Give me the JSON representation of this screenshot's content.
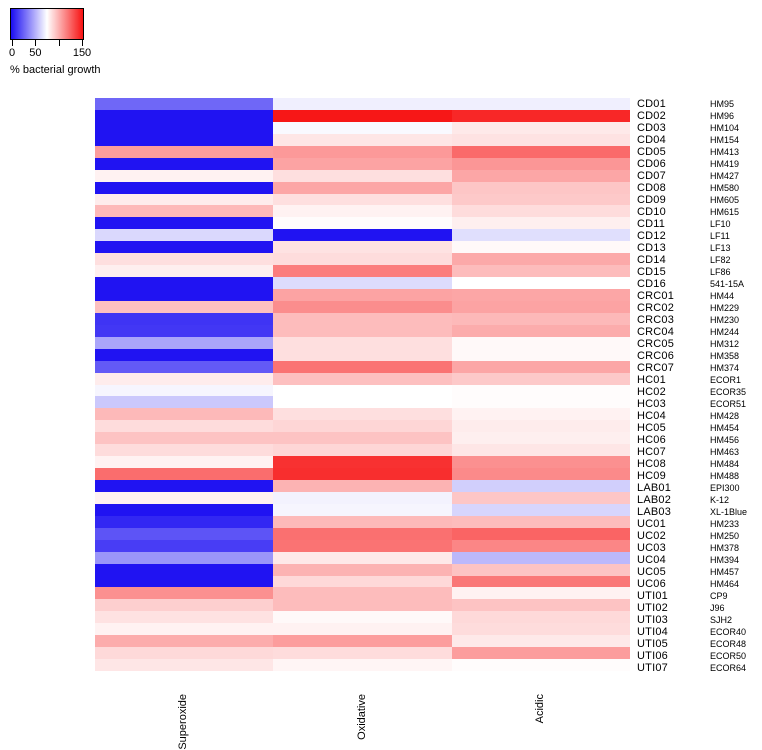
{
  "legend": {
    "title": "% bacterial growth",
    "ticks": [
      {
        "value": 0,
        "label": "0"
      },
      {
        "value": 50,
        "label": "50"
      },
      {
        "value": 100,
        "label": ""
      },
      {
        "value": 150,
        "label": "150"
      }
    ]
  },
  "chart_data": {
    "type": "heatmap",
    "unit": "% bacterial growth",
    "columns": [
      "Superoxide",
      "Oxidative",
      "Acidic"
    ],
    "color_scale": {
      "min": 0,
      "midpoint": 75,
      "max": 150,
      "min_color": "#1A0DF2",
      "mid_color": "#FFFFFF",
      "max_color": "#F71111"
    },
    "rows": [
      {
        "id": "CD01",
        "strain": "HM95",
        "values": [
          28,
          70,
          70
        ]
      },
      {
        "id": "CD02",
        "strain": "HM96",
        "values": [
          2,
          148,
          143
        ]
      },
      {
        "id": "CD03",
        "strain": "HM104",
        "values": [
          2,
          73,
          82
        ]
      },
      {
        "id": "CD04",
        "strain": "HM154",
        "values": [
          2,
          83,
          84
        ]
      },
      {
        "id": "CD05",
        "strain": "HM413",
        "values": [
          106,
          107,
          122
        ]
      },
      {
        "id": "CD06",
        "strain": "HM419",
        "values": [
          2,
          104,
          108
        ]
      },
      {
        "id": "CD07",
        "strain": "HM427",
        "values": [
          79,
          85,
          103
        ]
      },
      {
        "id": "CD08",
        "strain": "HM580",
        "values": [
          2,
          103,
          93
        ]
      },
      {
        "id": "CD09",
        "strain": "HM605",
        "values": [
          81,
          85,
          92
        ]
      },
      {
        "id": "CD10",
        "strain": "HM615",
        "values": [
          97,
          79,
          86
        ]
      },
      {
        "id": "CD11",
        "strain": "LF10",
        "values": [
          2,
          76,
          80
        ]
      },
      {
        "id": "CD12",
        "strain": "LF11",
        "values": [
          63,
          2,
          65
        ]
      },
      {
        "id": "CD13",
        "strain": "LF13",
        "values": [
          2,
          84,
          77
        ]
      },
      {
        "id": "CD14",
        "strain": "LF82",
        "values": [
          85,
          86,
          102
        ]
      },
      {
        "id": "CD15",
        "strain": "LF86",
        "values": [
          80,
          116,
          96
        ]
      },
      {
        "id": "CD16",
        "strain": "541-15A",
        "values": [
          2,
          64,
          75
        ]
      },
      {
        "id": "CRC01",
        "strain": "HM44",
        "values": [
          2,
          104,
          103
        ]
      },
      {
        "id": "CRC02",
        "strain": "HM229",
        "values": [
          95,
          111,
          104
        ]
      },
      {
        "id": "CRC03",
        "strain": "HM230",
        "values": [
          12,
          96,
          97
        ]
      },
      {
        "id": "CRC04",
        "strain": "HM244",
        "values": [
          13,
          96,
          101
        ]
      },
      {
        "id": "CRC05",
        "strain": "HM312",
        "values": [
          47,
          85,
          77
        ]
      },
      {
        "id": "CRC06",
        "strain": "HM358",
        "values": [
          2,
          85,
          77
        ]
      },
      {
        "id": "CRC07",
        "strain": "HM374",
        "values": [
          24,
          119,
          103
        ]
      },
      {
        "id": "HC01",
        "strain": "ECOR1",
        "values": [
          81,
          95,
          92
        ]
      },
      {
        "id": "HC02",
        "strain": "ECOR35",
        "values": [
          72,
          75,
          76
        ]
      },
      {
        "id": "HC03",
        "strain": "ECOR51",
        "values": [
          58,
          75,
          76
        ]
      },
      {
        "id": "HC04",
        "strain": "HM428",
        "values": [
          97,
          85,
          79
        ]
      },
      {
        "id": "HC05",
        "strain": "HM454",
        "values": [
          86,
          88,
          81
        ]
      },
      {
        "id": "HC06",
        "strain": "HM456",
        "values": [
          94,
          94,
          80
        ]
      },
      {
        "id": "HC07",
        "strain": "HM463",
        "values": [
          86,
          88,
          83
        ]
      },
      {
        "id": "HC08",
        "strain": "HM484",
        "values": [
          79,
          140,
          110
        ]
      },
      {
        "id": "HC09",
        "strain": "HM488",
        "values": [
          121,
          141,
          112
        ]
      },
      {
        "id": "LAB01",
        "strain": "EPI300",
        "values": [
          2,
          99,
          60
        ]
      },
      {
        "id": "LAB02",
        "strain": "K-12",
        "values": [
          79,
          71,
          93
        ]
      },
      {
        "id": "LAB03",
        "strain": "XL-1Blue",
        "values": [
          2,
          72,
          62
        ]
      },
      {
        "id": "UC01",
        "strain": "HM233",
        "values": [
          8,
          97,
          96
        ]
      },
      {
        "id": "UC02",
        "strain": "HM250",
        "values": [
          22,
          120,
          124
        ]
      },
      {
        "id": "UC03",
        "strain": "HM378",
        "values": [
          15,
          119,
          113
        ]
      },
      {
        "id": "UC04",
        "strain": "HM394",
        "values": [
          42,
          82,
          53
        ]
      },
      {
        "id": "UC05",
        "strain": "HM457",
        "values": [
          2,
          99,
          94
        ]
      },
      {
        "id": "UC06",
        "strain": "HM464",
        "values": [
          2,
          87,
          118
        ]
      },
      {
        "id": "UTI01",
        "strain": "CP9",
        "values": [
          110,
          96,
          79
        ]
      },
      {
        "id": "UTI02",
        "strain": "J96",
        "values": [
          90,
          96,
          94
        ]
      },
      {
        "id": "UTI03",
        "strain": "SJH2",
        "values": [
          84,
          77,
          87
        ]
      },
      {
        "id": "UTI04",
        "strain": "ECOR40",
        "values": [
          79,
          79,
          86
        ]
      },
      {
        "id": "UTI05",
        "strain": "ECOR48",
        "values": [
          101,
          106,
          82
        ]
      },
      {
        "id": "UTI06",
        "strain": "ECOR50",
        "values": [
          87,
          86,
          106
        ]
      },
      {
        "id": "UTI07",
        "strain": "ECOR64",
        "values": [
          83,
          78,
          76
        ]
      }
    ]
  }
}
